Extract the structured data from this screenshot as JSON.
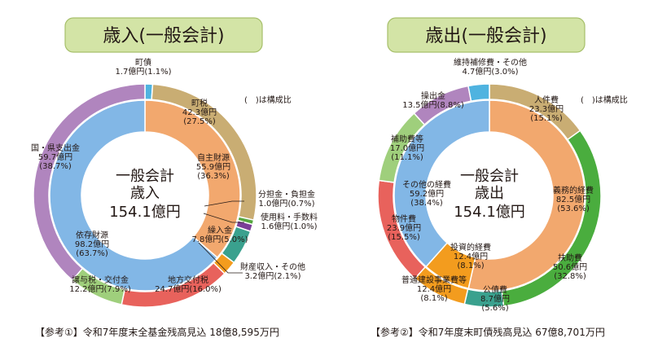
{
  "charts": [
    {
      "title": "歳入(一般会計)",
      "center": [
        "一般会計",
        "歳入",
        "154.1億円"
      ],
      "note": "(　)は構成比",
      "footer": "【参考①】令和7年度末全基金残高見込 18億8,595万円"
    },
    {
      "title": "歳出(一般会計)",
      "center": [
        "一般会計",
        "歳出",
        "154.1億円"
      ],
      "note": "(　)は構成比",
      "footer": "【参考②】令和7年度末町債残高見込 67億8,701万円"
    }
  ],
  "chart_data": [
    {
      "type": "pie",
      "title": "歳入(一般会計)",
      "total": "154.1億円",
      "outer": [
        {
          "label": "町債",
          "value": 1.7,
          "amount": "1.7億円",
          "pct": "(1.1%)",
          "color": "#4fb3e0"
        },
        {
          "label": "町税",
          "value": 42.3,
          "amount": "42.3億円",
          "pct": "(27.5%)",
          "color": "#c9ad73"
        },
        {
          "label": "分担金・負担金",
          "value": 1.0,
          "amount": "1.0億円",
          "pct": "(0.7%)",
          "color": "#56a640"
        },
        {
          "label": "使用料・手数料",
          "value": 1.6,
          "amount": "1.6億円",
          "pct": "(1.0%)",
          "color": "#7b3f98"
        },
        {
          "label": "繰入金",
          "value": 7.8,
          "amount": "7.8億円",
          "pct": "(5.0%)",
          "color": "#3aa18e"
        },
        {
          "label": "財産収入・その他",
          "value": 3.2,
          "amount": "3.2億円",
          "pct": "(2.1%)",
          "color": "#f39c1e"
        },
        {
          "label": "地方交付税",
          "value": 24.7,
          "amount": "24.7億円",
          "pct": "(16.0%)",
          "color": "#e8625c"
        },
        {
          "label": "譲与税・交付金",
          "value": 12.2,
          "amount": "12.2億円",
          "pct": "(7.9%)",
          "color": "#9fcf7c"
        },
        {
          "label": "国・県支出金",
          "value": 59.7,
          "amount": "59.7億円",
          "pct": "(38.7%)",
          "color": "#b085be"
        }
      ],
      "inner": [
        {
          "label": "自主財源",
          "value": 55.9,
          "amount": "55.9億円",
          "pct": "(36.3%)",
          "color": "#f2a86e"
        },
        {
          "label": "依存財源",
          "value": 98.2,
          "amount": "98.2億円",
          "pct": "(63.7%)",
          "color": "#82b7e6"
        }
      ]
    },
    {
      "type": "pie",
      "title": "歳出(一般会計)",
      "total": "154.1億円",
      "outer": [
        {
          "label": "人件費",
          "value": 23.3,
          "amount": "23.3億円",
          "pct": "(15.1%)",
          "color": "#c9ad73"
        },
        {
          "label": "扶助費",
          "value": 50.6,
          "amount": "50.6億円",
          "pct": "(32.8%)",
          "color": "#4aad3e"
        },
        {
          "label": "公債費",
          "value": 8.7,
          "amount": "8.7億円",
          "pct": "(5.6%)",
          "color": "#3aa18e"
        },
        {
          "label": "普通建設事業費等",
          "value": 12.4,
          "amount": "12.4億円",
          "pct": "(8.1%)",
          "color": "#f39c1e"
        },
        {
          "label": "物件費",
          "value": 23.9,
          "amount": "23.9億円",
          "pct": "(15.5%)",
          "color": "#e8625c"
        },
        {
          "label": "補助費等",
          "value": 17.0,
          "amount": "17.0億円",
          "pct": "(11.1%)",
          "color": "#9fcf7c"
        },
        {
          "label": "操出金",
          "value": 13.5,
          "amount": "13.5億円",
          "pct": "(8.8%)",
          "color": "#b085be"
        },
        {
          "label": "維持補修費・その他",
          "value": 4.7,
          "amount": "4.7億円",
          "pct": "(3.0%)",
          "color": "#4fb3e0"
        }
      ],
      "inner": [
        {
          "label": "義務的経費",
          "value": 82.5,
          "amount": "82.5億円",
          "pct": "(53.6%)",
          "color": "#f2a86e"
        },
        {
          "label": "投資的経費",
          "value": 12.4,
          "amount": "12.4億円",
          "pct": "(8.1%)",
          "color": "#f39c1e"
        },
        {
          "label": "その他の経費",
          "value": 59.2,
          "amount": "59.2億円",
          "pct": "(38.4%)",
          "color": "#82b7e6"
        }
      ]
    }
  ]
}
